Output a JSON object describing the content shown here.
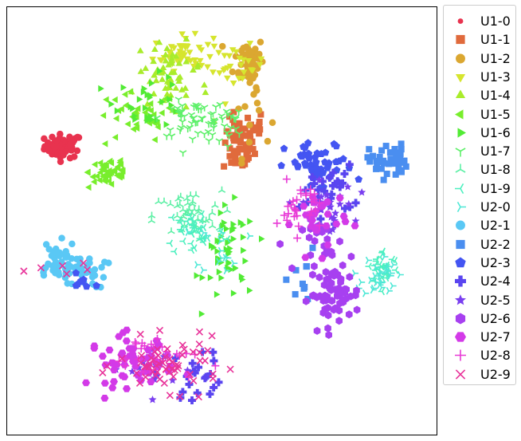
{
  "chart_data": {
    "type": "scatter",
    "title": "",
    "xlabel": "",
    "ylabel": "",
    "grid": false,
    "axes_ticks": false,
    "xlim": [
      0,
      100
    ],
    "ylim": [
      0,
      100
    ],
    "legend_position": "outside-right",
    "series": [
      {
        "name": "U1-0",
        "marker": "circle",
        "color": "#e8334f",
        "clusters": [
          {
            "x": 13,
            "y": 67.5,
            "sx": 2.2,
            "sy": 1.4,
            "n": 60
          }
        ]
      },
      {
        "name": "U1-1",
        "marker": "square",
        "color": "#e06a3c",
        "clusters": [
          {
            "x": 54,
            "y": 67.5,
            "sx": 1.8,
            "sy": 3.2,
            "n": 55
          },
          {
            "x": 58,
            "y": 72,
            "sx": 0.8,
            "sy": 2,
            "n": 12
          }
        ]
      },
      {
        "name": "U1-2",
        "marker": "circle",
        "color": "#dba731",
        "clusters": [
          {
            "x": 56.5,
            "y": 87.5,
            "sx": 1.8,
            "sy": 3,
            "n": 55
          },
          {
            "x": 57,
            "y": 75,
            "sx": 2.2,
            "sy": 5,
            "n": 12
          }
        ]
      },
      {
        "name": "U1-3",
        "marker": "triangle-down",
        "color": "#d6e52e",
        "clusters": [
          {
            "x": 41,
            "y": 89.5,
            "sx": 3.5,
            "sy": 2,
            "n": 50
          },
          {
            "x": 54,
            "y": 86,
            "sx": 3,
            "sy": 2.5,
            "n": 25
          }
        ]
      },
      {
        "name": "U1-4",
        "marker": "triangle-up",
        "color": "#a9ec2b",
        "clusters": [
          {
            "x": 38,
            "y": 86,
            "sx": 4,
            "sy": 3,
            "n": 30
          },
          {
            "x": 37,
            "y": 81,
            "sx": 5,
            "sy": 3,
            "n": 30
          }
        ]
      },
      {
        "name": "U1-5",
        "marker": "triangle-left",
        "color": "#78ee2c",
        "clusters": [
          {
            "x": 24,
            "y": 61.5,
            "sx": 2.5,
            "sy": 2,
            "n": 50
          },
          {
            "x": 30,
            "y": 74,
            "sx": 5,
            "sy": 3,
            "n": 35
          }
        ]
      },
      {
        "name": "U1-6",
        "marker": "triangle-right",
        "color": "#52eb35",
        "clusters": [
          {
            "x": 52,
            "y": 42,
            "sx": 3,
            "sy": 5.5,
            "n": 50
          },
          {
            "x": 33,
            "y": 78,
            "sx": 4,
            "sy": 3,
            "n": 30
          }
        ]
      },
      {
        "name": "U1-7",
        "marker": "tri-down",
        "color": "#5ef06a",
        "clusters": [
          {
            "x": 43,
            "y": 74,
            "sx": 3.5,
            "sy": 2,
            "n": 45
          },
          {
            "x": 50,
            "y": 73,
            "sx": 2.5,
            "sy": 2.5,
            "n": 25
          }
        ]
      },
      {
        "name": "U1-8",
        "marker": "tri-up",
        "color": "#5ef0a6",
        "clusters": [
          {
            "x": 42,
            "y": 51,
            "sx": 4,
            "sy": 3,
            "n": 45
          }
        ]
      },
      {
        "name": "U1-9",
        "marker": "tri-left",
        "color": "#4cf0bf",
        "clusters": [
          {
            "x": 44,
            "y": 47.5,
            "sx": 3.5,
            "sy": 3,
            "n": 40
          },
          {
            "x": 88,
            "y": 39,
            "sx": 1.8,
            "sy": 2,
            "n": 30
          }
        ]
      },
      {
        "name": "U2-0",
        "marker": "tri-right",
        "color": "#4ee8d6",
        "clusters": [
          {
            "x": 87,
            "y": 37,
            "sx": 2,
            "sy": 2.5,
            "n": 30
          },
          {
            "x": 50,
            "y": 44,
            "sx": 3,
            "sy": 3,
            "n": 15
          }
        ]
      },
      {
        "name": "U2-1",
        "marker": "circle",
        "color": "#5ac8f5",
        "clusters": [
          {
            "x": 11,
            "y": 40,
            "sx": 2.5,
            "sy": 2.5,
            "n": 45
          },
          {
            "x": 18,
            "y": 38,
            "sx": 2.5,
            "sy": 2,
            "n": 30
          }
        ]
      },
      {
        "name": "U2-2",
        "marker": "square",
        "color": "#4a8ef0",
        "clusters": [
          {
            "x": 89,
            "y": 64,
            "sx": 2.2,
            "sy": 2,
            "n": 45
          },
          {
            "x": 68,
            "y": 35,
            "sx": 4,
            "sy": 4,
            "n": 10
          }
        ]
      },
      {
        "name": "U2-3",
        "marker": "pentagon",
        "color": "#4455f2",
        "clusters": [
          {
            "x": 73,
            "y": 62.5,
            "sx": 4,
            "sy": 3,
            "n": 50
          },
          {
            "x": 18,
            "y": 36,
            "sx": 2,
            "sy": 1.5,
            "n": 8
          }
        ]
      },
      {
        "name": "U2-4",
        "marker": "plus-filled",
        "color": "#5a45f0",
        "clusters": [
          {
            "x": 75,
            "y": 57,
            "sx": 3,
            "sy": 3,
            "n": 25
          },
          {
            "x": 45,
            "y": 14,
            "sx": 3,
            "sy": 3,
            "n": 20
          }
        ]
      },
      {
        "name": "U2-5",
        "marker": "star",
        "color": "#7a3ff0",
        "clusters": [
          {
            "x": 75,
            "y": 53,
            "sx": 3,
            "sy": 3,
            "n": 25
          },
          {
            "x": 33,
            "y": 15,
            "sx": 6,
            "sy": 3,
            "n": 15
          }
        ]
      },
      {
        "name": "U2-6",
        "marker": "hexagon",
        "color": "#a740f0",
        "clusters": [
          {
            "x": 76.5,
            "y": 32.5,
            "sx": 3,
            "sy": 3,
            "n": 60
          },
          {
            "x": 75,
            "y": 44,
            "sx": 3,
            "sy": 3,
            "n": 25
          }
        ]
      },
      {
        "name": "U2-7",
        "marker": "hexagon2",
        "color": "#d33ae8",
        "clusters": [
          {
            "x": 29,
            "y": 17,
            "sx": 5,
            "sy": 3,
            "n": 55
          },
          {
            "x": 73,
            "y": 50,
            "sx": 3,
            "sy": 4,
            "n": 30
          }
        ]
      },
      {
        "name": "U2-8",
        "marker": "plus",
        "color": "#e83ad6",
        "clusters": [
          {
            "x": 68,
            "y": 53,
            "sx": 2.5,
            "sy": 3,
            "n": 30
          },
          {
            "x": 35,
            "y": 18,
            "sx": 5,
            "sy": 3,
            "n": 25
          }
        ]
      },
      {
        "name": "U2-9",
        "marker": "x",
        "color": "#e8339a",
        "clusters": [
          {
            "x": 38,
            "y": 16,
            "sx": 6,
            "sy": 3,
            "n": 60
          },
          {
            "x": 14,
            "y": 38,
            "sx": 4,
            "sy": 2,
            "n": 6
          }
        ]
      }
    ]
  }
}
